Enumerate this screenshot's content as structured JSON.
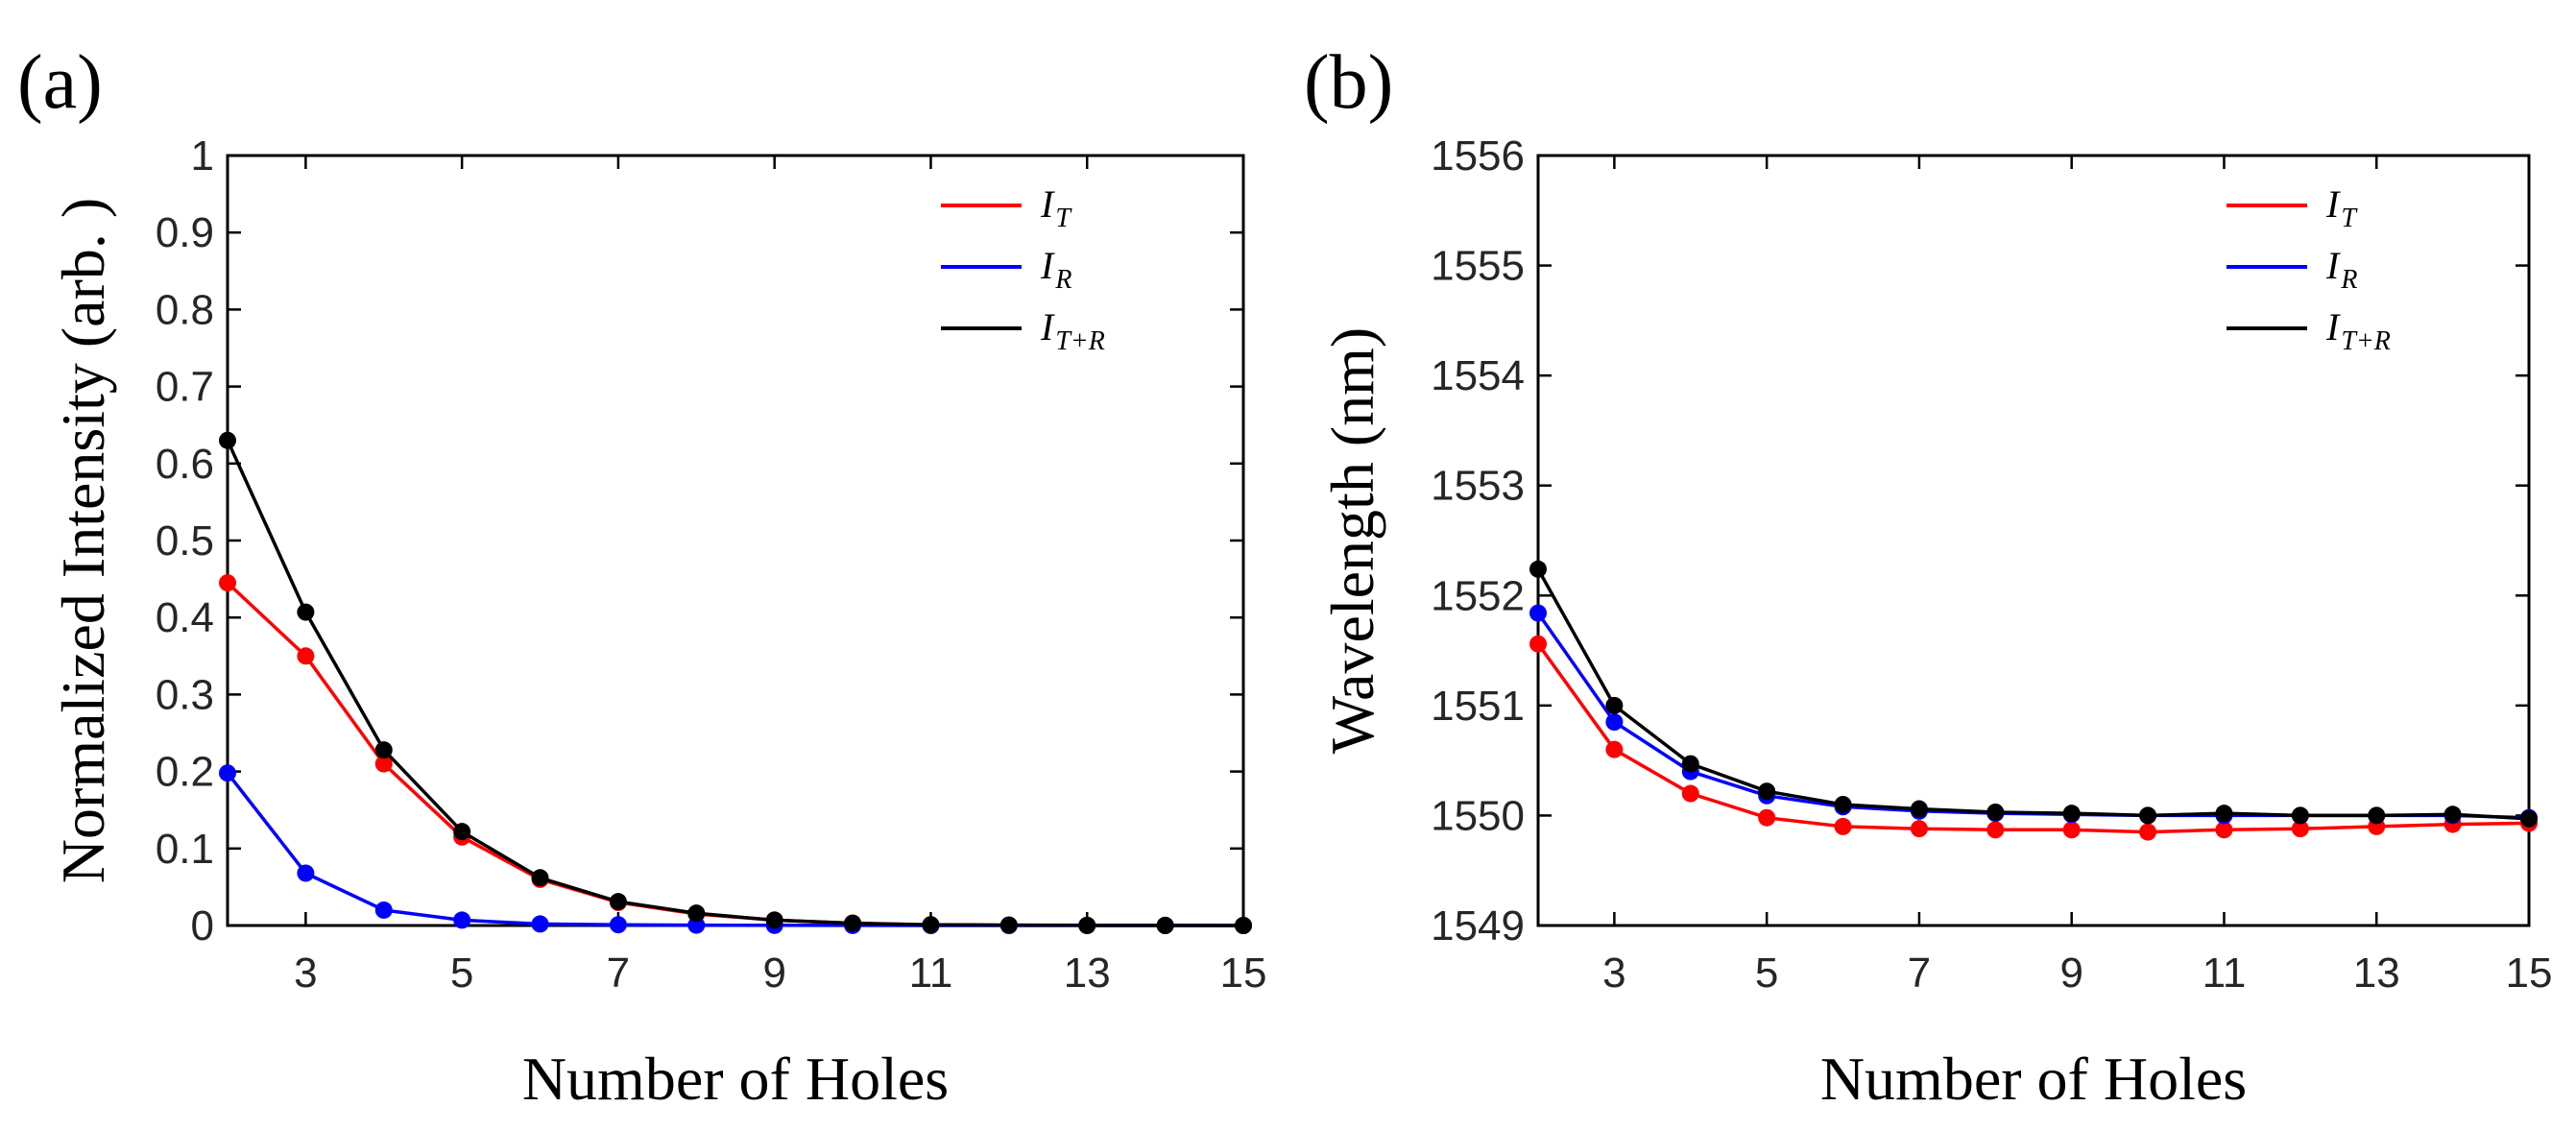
{
  "chart_data": [
    {
      "type": "line",
      "panel_label": "(a)",
      "title": "",
      "xlabel": "Number of Holes",
      "ylabel": "Normalized Intensity (arb. )",
      "xlim": [
        2,
        15
      ],
      "ylim": [
        0,
        1
      ],
      "xticks": [
        "3",
        "5",
        "7",
        "9",
        "11",
        "13",
        "15"
      ],
      "yticks": [
        "0",
        "0.1",
        "0.2",
        "0.3",
        "0.4",
        "0.5",
        "0.6",
        "0.7",
        "0.8",
        "0.9",
        "1"
      ],
      "legend_position": "top-right",
      "x": [
        2,
        3,
        4,
        5,
        6,
        7,
        8,
        9,
        10,
        11,
        12,
        13,
        14,
        15
      ],
      "series": [
        {
          "name": "I",
          "subscript": "T",
          "color": "#ff0000",
          "values": [
            0.445,
            0.35,
            0.21,
            0.115,
            0.06,
            0.03,
            0.015,
            0.007,
            0.003,
            0.001,
            0.0005,
            0.0002,
            0.0001,
            0.0
          ]
        },
        {
          "name": "I",
          "subscript": "R",
          "color": "#0000ff",
          "values": [
            0.198,
            0.068,
            0.02,
            0.007,
            0.002,
            0.001,
            0.0005,
            0.0002,
            0.0001,
            0.0,
            0.0,
            0.0,
            0.0,
            0.0
          ]
        },
        {
          "name": "I",
          "subscript": "T+R",
          "color": "#000000",
          "values": [
            0.63,
            0.407,
            0.228,
            0.122,
            0.062,
            0.031,
            0.016,
            0.007,
            0.003,
            0.001,
            0.0005,
            0.0002,
            0.0001,
            0.0
          ]
        }
      ]
    },
    {
      "type": "line",
      "panel_label": "(b)",
      "title": "",
      "xlabel": "Number of Holes",
      "ylabel": "Wavelength (nm)",
      "xlim": [
        2,
        15
      ],
      "ylim": [
        1549,
        1556
      ],
      "xticks": [
        "3",
        "5",
        "7",
        "9",
        "11",
        "13",
        "15"
      ],
      "yticks": [
        "1549",
        "1550",
        "1551",
        "1552",
        "1553",
        "1554",
        "1555",
        "1556"
      ],
      "legend_position": "top-right",
      "x": [
        2,
        3,
        4,
        5,
        6,
        7,
        8,
        9,
        10,
        11,
        12,
        13,
        14,
        15
      ],
      "series": [
        {
          "name": "I",
          "subscript": "T",
          "color": "#ff0000",
          "values": [
            1551.56,
            1550.6,
            1550.2,
            1549.98,
            1549.9,
            1549.88,
            1549.87,
            1549.87,
            1549.85,
            1549.87,
            1549.88,
            1549.9,
            1549.92,
            1549.93
          ]
        },
        {
          "name": "I",
          "subscript": "R",
          "color": "#0000ff",
          "values": [
            1551.84,
            1550.85,
            1550.4,
            1550.18,
            1550.08,
            1550.04,
            1550.02,
            1550.01,
            1550.0,
            1550.0,
            1550.0,
            1550.0,
            1550.0,
            1549.98
          ]
        },
        {
          "name": "I",
          "subscript": "T+R",
          "color": "#000000",
          "values": [
            1552.24,
            1551.0,
            1550.47,
            1550.22,
            1550.1,
            1550.06,
            1550.03,
            1550.02,
            1550.0,
            1550.02,
            1550.0,
            1550.0,
            1550.01,
            1549.97
          ]
        }
      ]
    }
  ]
}
